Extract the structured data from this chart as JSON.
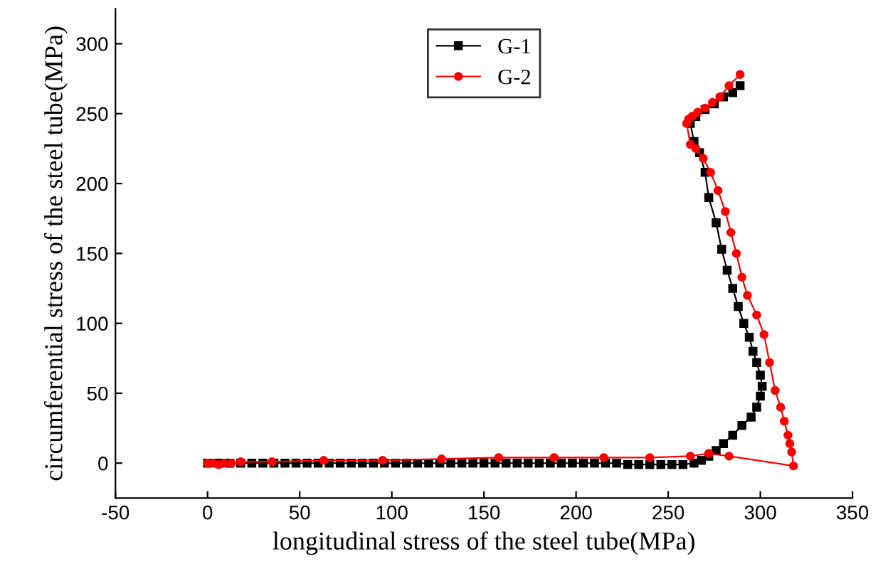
{
  "chart_data": {
    "type": "line",
    "xlabel": "longitudinal stress of the steel tube(MPa)",
    "ylabel": "circumferential stress of the steel tube(MPa)",
    "xlim": [
      -50,
      350
    ],
    "xticks": [
      -50,
      0,
      50,
      100,
      150,
      200,
      250,
      300,
      350
    ],
    "ylim": [
      -25,
      325
    ],
    "yticks": [
      0,
      50,
      100,
      150,
      200,
      250,
      300
    ],
    "legend": "top",
    "grid": false,
    "series": [
      {
        "name": "G-1",
        "color": "#000000",
        "marker": "square",
        "x": [
          0,
          6,
          12,
          18,
          24,
          30,
          36,
          42,
          48,
          54,
          60,
          66,
          72,
          78,
          84,
          90,
          96,
          102,
          108,
          114,
          120,
          126,
          132,
          138,
          144,
          150,
          156,
          162,
          168,
          174,
          180,
          186,
          192,
          198,
          204,
          210,
          216,
          222,
          228,
          234,
          240,
          246,
          252,
          258,
          264,
          268,
          272,
          276,
          280,
          285,
          290,
          295,
          298,
          300,
          301,
          300,
          298,
          296,
          294,
          291,
          288,
          285,
          282,
          279,
          276,
          272,
          270,
          267,
          264,
          262,
          265,
          270,
          275,
          280,
          285,
          289
        ],
        "values": [
          0,
          0,
          0,
          0,
          0,
          0,
          0,
          0,
          0,
          0,
          0,
          0,
          0,
          0,
          0,
          0,
          0,
          0,
          0,
          0,
          0,
          0,
          0,
          0,
          0,
          0,
          0,
          0,
          0,
          0,
          0,
          0,
          0,
          0,
          0,
          0,
          0,
          0,
          -1,
          -1,
          -1,
          -1,
          -1,
          -1,
          0,
          2,
          5,
          9,
          14,
          20,
          27,
          33,
          40,
          48,
          55,
          63,
          72,
          80,
          90,
          100,
          112,
          125,
          138,
          153,
          172,
          190,
          208,
          222,
          230,
          243,
          248,
          253,
          257,
          262,
          265,
          270
        ]
      },
      {
        "name": "G-2",
        "color": "#ff0000",
        "marker": "circle",
        "x": [
          0,
          3,
          6,
          9,
          13,
          18,
          35,
          63,
          95,
          127,
          158,
          188,
          215,
          240,
          262,
          272,
          283,
          318,
          317,
          316,
          315,
          313,
          311,
          308,
          305,
          302,
          298,
          293,
          290,
          287,
          284,
          281,
          277,
          273,
          269,
          265,
          262,
          260,
          261,
          263,
          266,
          270,
          274,
          278,
          283,
          289
        ],
        "values": [
          0,
          0,
          -1,
          0,
          0,
          1,
          1,
          2,
          2,
          3,
          4,
          4,
          4,
          4,
          5,
          7,
          5,
          -2,
          8,
          14,
          20,
          30,
          40,
          52,
          72,
          92,
          106,
          120,
          133,
          150,
          165,
          180,
          195,
          208,
          218,
          225,
          228,
          243,
          246,
          248,
          251,
          254,
          258,
          262,
          270,
          278
        ]
      }
    ]
  }
}
